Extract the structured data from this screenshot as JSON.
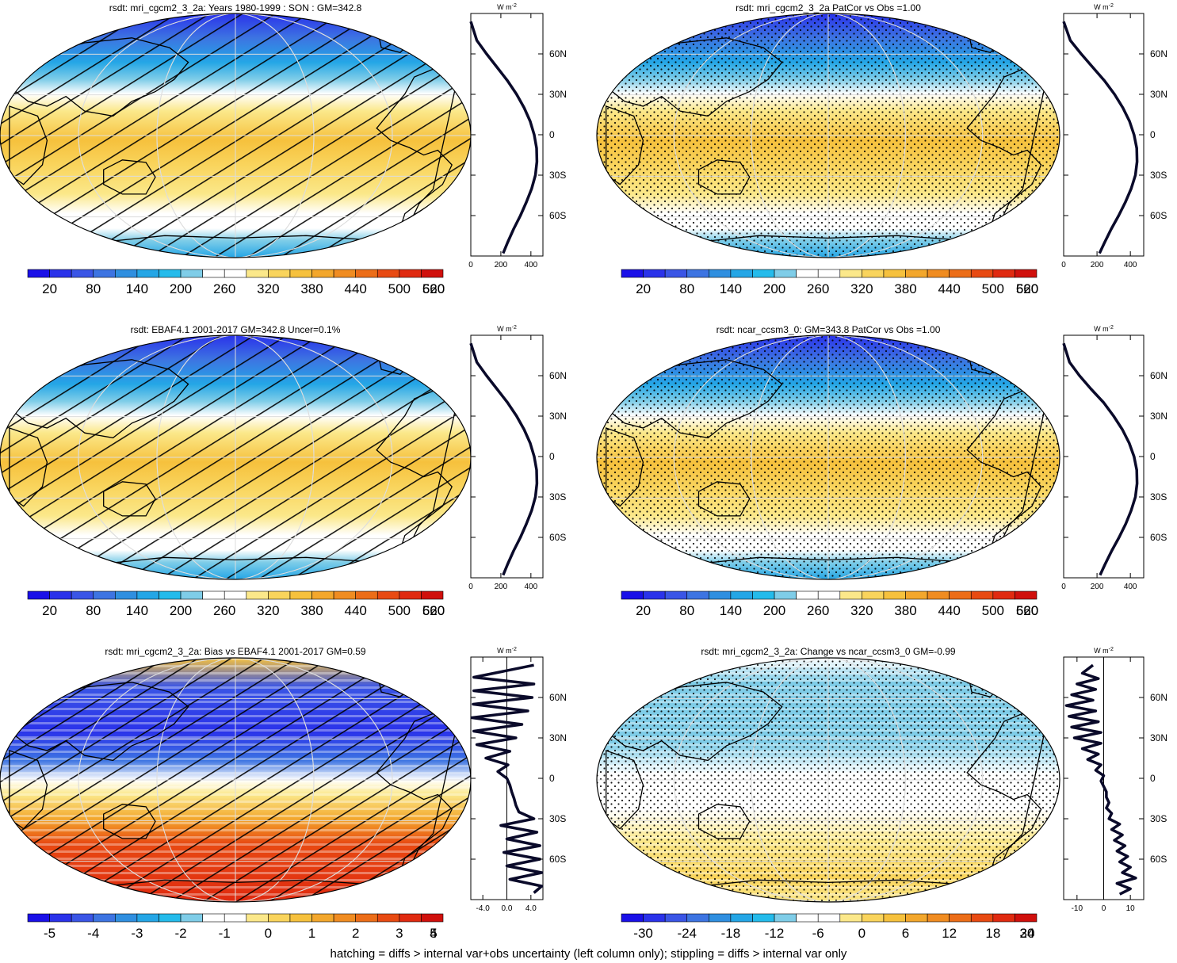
{
  "footnote": "hatching = diffs > internal var+obs uncertainty (left column only); stippling = diffs > internal var only",
  "colors": {
    "ramp_mean": [
      "#1a10e8",
      "#2a32ea",
      "#3a55e6",
      "#3d74e2",
      "#2f8fe0",
      "#24a6e6",
      "#24bbeb",
      "#7fcde8",
      "#ffffff",
      "#ffffff",
      "#fbe88a",
      "#f9d45c",
      "#f6c13d",
      "#f3a72c",
      "#f08c21",
      "#ec6d18",
      "#e84a12",
      "#e02a10",
      "#d0100c"
    ],
    "ramp_diff": [
      "#1a10e8",
      "#2a32ea",
      "#3a55e6",
      "#3d74e2",
      "#2f8fe0",
      "#24a6e6",
      "#24bbeb",
      "#7fcde8",
      "#ffffff",
      "#ffffff",
      "#fbe88a",
      "#f9d45c",
      "#f6c13d",
      "#f3a72c",
      "#f08c21",
      "#ec6d18",
      "#e84a12",
      "#e02a10",
      "#d0100c"
    ]
  },
  "chart_data": [
    {
      "type": "heatmap",
      "title": "rsdt: mri_cgcm2_3_2a: Years 1980-1999 : SON : GM=342.8",
      "pattern": "hatch",
      "field": "mean",
      "colorbar_ticks": [
        "20",
        "80",
        "140",
        "200",
        "260",
        "320",
        "380",
        "440",
        "500",
        "560",
        "620"
      ],
      "profile": {
        "type": "line",
        "unit": "W m",
        "unit_exp": "-2",
        "xlim": [
          0,
          480
        ],
        "xticks": [
          "0",
          "200",
          "400"
        ],
        "ylim": [
          -90,
          90
        ],
        "yticks": [
          "60N",
          "30N",
          "0",
          "30S",
          "60S"
        ],
        "lat": [
          84,
          70,
          60,
          50,
          40,
          30,
          20,
          10,
          0,
          -10,
          -20,
          -30,
          -40,
          -50,
          -60,
          -70,
          -80,
          -88
        ],
        "values": [
          0,
          40,
          105,
          175,
          245,
          305,
          355,
          395,
          422,
          438,
          440,
          430,
          405,
          370,
          330,
          285,
          245,
          215
        ]
      }
    },
    {
      "type": "heatmap",
      "title": "rsdt: mri_cgcm2_3_2a PatCor vs Obs =1.00",
      "pattern": "stipple",
      "field": "mean",
      "colorbar_ticks": [
        "20",
        "80",
        "140",
        "200",
        "260",
        "320",
        "380",
        "440",
        "500",
        "560",
        "620"
      ],
      "profile": {
        "type": "line",
        "unit": "W m",
        "unit_exp": "-2",
        "xlim": [
          0,
          480
        ],
        "xticks": [
          "0",
          "200",
          "400"
        ],
        "ylim": [
          -90,
          90
        ],
        "yticks": [
          "60N",
          "30N",
          "0",
          "30S",
          "60S"
        ],
        "lat": [
          84,
          70,
          60,
          50,
          40,
          30,
          20,
          10,
          0,
          -10,
          -20,
          -30,
          -40,
          -50,
          -60,
          -70,
          -80,
          -88
        ],
        "values": [
          0,
          40,
          105,
          175,
          245,
          305,
          355,
          395,
          422,
          438,
          440,
          430,
          405,
          370,
          330,
          285,
          245,
          215
        ]
      }
    },
    {
      "type": "heatmap",
      "title": "rsdt: EBAF4.1 2001-2017 GM=342.8 Uncer=0.1%",
      "pattern": "hatch",
      "field": "mean",
      "colorbar_ticks": [
        "20",
        "80",
        "140",
        "200",
        "260",
        "320",
        "380",
        "440",
        "500",
        "560",
        "620"
      ],
      "profile": {
        "type": "line",
        "unit": "W m",
        "unit_exp": "-2",
        "xlim": [
          0,
          480
        ],
        "xticks": [
          "0",
          "200",
          "400"
        ],
        "ylim": [
          -90,
          90
        ],
        "yticks": [
          "60N",
          "30N",
          "0",
          "30S",
          "60S"
        ],
        "lat": [
          84,
          70,
          60,
          50,
          40,
          30,
          20,
          10,
          0,
          -10,
          -20,
          -30,
          -40,
          -50,
          -60,
          -70,
          -80,
          -88
        ],
        "values": [
          0,
          40,
          105,
          175,
          245,
          305,
          355,
          395,
          422,
          438,
          440,
          430,
          405,
          370,
          330,
          285,
          245,
          215
        ]
      }
    },
    {
      "type": "heatmap",
      "title": "rsdt: ncar_ccsm3_0: GM=343.8 PatCor vs Obs =1.00",
      "pattern": "stipple",
      "field": "mean",
      "colorbar_ticks": [
        "20",
        "80",
        "140",
        "200",
        "260",
        "320",
        "380",
        "440",
        "500",
        "560",
        "620"
      ],
      "profile": {
        "type": "line",
        "unit": "W m",
        "unit_exp": "-2",
        "xlim": [
          0,
          480
        ],
        "xticks": [
          "0",
          "200",
          "400"
        ],
        "ylim": [
          -90,
          90
        ],
        "yticks": [
          "60N",
          "30N",
          "0",
          "30S",
          "60S"
        ],
        "lat": [
          84,
          70,
          60,
          50,
          40,
          30,
          20,
          10,
          0,
          -10,
          -20,
          -30,
          -40,
          -50,
          -60,
          -70,
          -80,
          -88
        ],
        "values": [
          0,
          35,
          95,
          165,
          240,
          300,
          352,
          393,
          422,
          438,
          440,
          430,
          405,
          372,
          332,
          288,
          248,
          218
        ]
      }
    },
    {
      "type": "heatmap",
      "title": "rsdt: mri_cgcm2_3_2a: Bias vs EBAF4.1 2001-2017  GM=0.59",
      "pattern": "hatch",
      "field": "bias",
      "colorbar_ticks": [
        "-5",
        "-4",
        "-3",
        "-2",
        "-1",
        "0",
        "1",
        "2",
        "3",
        "4",
        "5"
      ],
      "profile": {
        "type": "line",
        "unit": "W m",
        "unit_exp": "-2",
        "xlim": [
          -6,
          6
        ],
        "xticks": [
          "-4.0",
          "0.0",
          "4.0"
        ],
        "ylim": [
          -90,
          90
        ],
        "yticks": [
          "60N",
          "30N",
          "0",
          "30S",
          "60S"
        ],
        "lat": [
          84,
          75,
          70,
          65,
          60,
          55,
          50,
          45,
          40,
          35,
          30,
          25,
          20,
          15,
          10,
          5,
          0,
          -5,
          -10,
          -15,
          -20,
          -25,
          -30,
          -35,
          -40,
          -45,
          -50,
          -55,
          -60,
          -65,
          -70,
          -75,
          -80,
          -85
        ],
        "values": [
          4.5,
          -5.5,
          4.5,
          -5.5,
          4.2,
          -5.6,
          3.5,
          -5.8,
          2.5,
          -5.5,
          1.5,
          -5.0,
          0.5,
          -3.5,
          0.2,
          -1.5,
          0.0,
          0.5,
          0.8,
          1.2,
          1.5,
          2.0,
          4.5,
          -1.0,
          5.0,
          0.0,
          5.5,
          -0.5,
          5.5,
          0.0,
          5.8,
          0.5,
          5.8,
          4.5
        ]
      }
    },
    {
      "type": "heatmap",
      "title": "rsdt: mri_cgcm2_3_2a: Change vs ncar_ccsm3_0 GM=-0.99",
      "pattern": "stipple",
      "field": "change",
      "colorbar_ticks": [
        "-30",
        "-24",
        "-18",
        "-12",
        "-6",
        "0",
        "6",
        "12",
        "18",
        "24",
        "30"
      ],
      "profile": {
        "type": "line",
        "unit": "W m",
        "unit_exp": "-2",
        "xlim": [
          -15,
          15
        ],
        "xticks": [
          "-10",
          "0",
          "10"
        ],
        "ylim": [
          -90,
          90
        ],
        "yticks": [
          "60N",
          "30N",
          "0",
          "30S",
          "60S"
        ],
        "lat": [
          84,
          78,
          74,
          70,
          66,
          62,
          58,
          54,
          50,
          46,
          42,
          38,
          34,
          30,
          26,
          22,
          18,
          14,
          10,
          6,
          2,
          -2,
          -6,
          -10,
          -14,
          -18,
          -22,
          -26,
          -30,
          -34,
          -38,
          -42,
          -46,
          -50,
          -54,
          -58,
          -62,
          -66,
          -70,
          -74,
          -78,
          -82,
          -86
        ],
        "values": [
          -4,
          -8,
          -2,
          -10,
          -3,
          -12,
          -4,
          -14,
          -3,
          -13,
          -2,
          -12,
          -1,
          -11,
          -1,
          -8,
          -2,
          -6,
          -1,
          -3,
          0,
          -1,
          0,
          1,
          1,
          2,
          1,
          3,
          2,
          6,
          3,
          7,
          4,
          8,
          5,
          9,
          6,
          10,
          7,
          12,
          5,
          10,
          6
        ]
      }
    }
  ]
}
